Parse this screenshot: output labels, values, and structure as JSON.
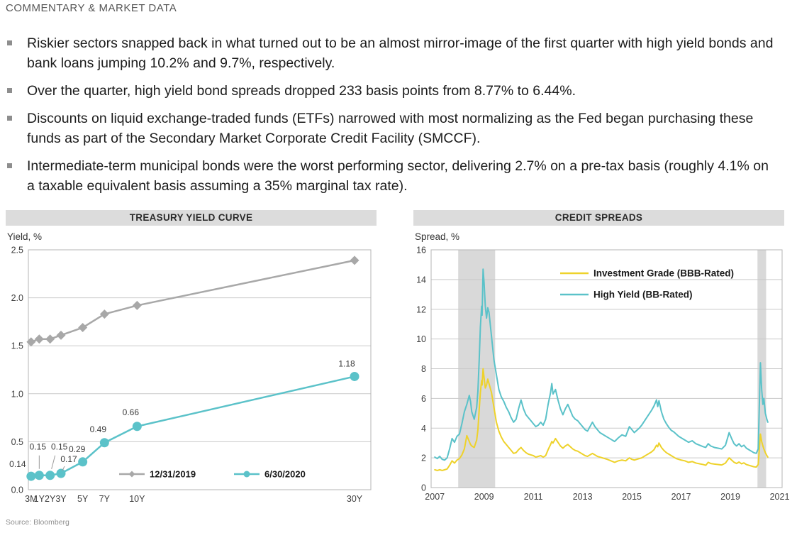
{
  "page": {
    "title": "COMMENTARY & MARKET DATA",
    "source": "Source: Bloomberg"
  },
  "bullets": [
    "Riskier sectors snapped back in what turned out to be an almost mirror-image of the first quarter with high yield bonds and bank loans jumping 10.2% and 9.7%, respectively.",
    "Over the quarter, high yield bond spreads dropped 233 basis points from 8.77% to 6.44%.",
    "Discounts on liquid exchange-traded funds (ETFs) narrowed with most normalizing as the Fed began purchasing these funds as part of the Secondary Market Corporate Credit Facility (SMCCF).",
    "Intermediate-term municipal bonds were the worst performing sector, delivering 2.7% on a pre-tax basis (roughly 4.1% on a taxable equivalent basis assuming a 35% marginal tax rate)."
  ],
  "colors": {
    "teal": "#5bc2c9",
    "yellow": "#eed22b",
    "series_gray": "#a8a8a8",
    "band_gray": "#d9d9d9",
    "banner_gray": "#dcdcdc",
    "grid": "#c9c9c9",
    "plot_border": "#b5b5b5"
  },
  "chart_data": [
    {
      "id": "treasury-yield-curve",
      "type": "line",
      "title": "TREASURY YIELD CURVE",
      "ylabel": "Yield, %",
      "xlim": [
        0,
        31.5
      ],
      "ylim": [
        0,
        2.5
      ],
      "yticks": [
        0,
        0.5,
        1.0,
        1.5,
        2.0,
        2.5
      ],
      "ytick_labels": [
        "0.0",
        "0.5",
        "1.0",
        "1.5",
        "2.0",
        "2.5"
      ],
      "xticks": [
        0.25,
        1,
        2,
        3,
        5,
        7,
        10,
        30
      ],
      "xtick_labels": [
        "3M",
        "1Y",
        "2Y",
        "3Y",
        "5Y",
        "7Y",
        "10Y",
        "30Y"
      ],
      "grid": "horizontal",
      "legend_position": "inside-bottom",
      "x": [
        0.25,
        1,
        2,
        3,
        5,
        7,
        10,
        30
      ],
      "series": [
        {
          "name": "12/31/2019",
          "color": "#a8a8a8",
          "marker": "diamond",
          "values": [
            1.54,
            1.57,
            1.57,
            1.61,
            1.69,
            1.83,
            1.92,
            2.39
          ]
        },
        {
          "name": "6/30/2020",
          "color": "#5bc2c9",
          "marker": "circle",
          "values": [
            0.14,
            0.15,
            0.15,
            0.17,
            0.29,
            0.49,
            0.66,
            1.18
          ],
          "point_labels": [
            "0.14",
            "0.15",
            "0.15",
            "0.17",
            "0.29",
            "0.49",
            "0.66",
            "1.18"
          ]
        }
      ]
    },
    {
      "id": "credit-spreads",
      "type": "line",
      "title": "CREDIT SPREADS",
      "ylabel": "Spread, %",
      "xlim": [
        2006.85,
        2021.1
      ],
      "ylim": [
        0,
        16
      ],
      "yticks": [
        0,
        2,
        4,
        6,
        8,
        10,
        12,
        14,
        16
      ],
      "ytick_labels": [
        "0",
        "2",
        "4",
        "6",
        "8",
        "10",
        "12",
        "14",
        "16"
      ],
      "xticks": [
        2007,
        2009,
        2011,
        2013,
        2015,
        2017,
        2019,
        2021
      ],
      "xtick_labels": [
        "2007",
        "2009",
        "2011",
        "2013",
        "2015",
        "2017",
        "2019",
        "2021"
      ],
      "grid": "horizontal",
      "legend_position": "inside-top-right",
      "bands": [
        {
          "from": 2007.95,
          "to": 2009.45
        },
        {
          "from": 2020.1,
          "to": 2020.45
        }
      ],
      "x": [
        2007.0,
        2007.1,
        2007.2,
        2007.3,
        2007.4,
        2007.5,
        2007.6,
        2007.7,
        2007.8,
        2007.9,
        2008.0,
        2008.1,
        2008.2,
        2008.3,
        2008.4,
        2008.45,
        2008.5,
        2008.6,
        2008.7,
        2008.75,
        2008.8,
        2008.85,
        2008.9,
        2008.92,
        2008.96,
        2009.0,
        2009.05,
        2009.1,
        2009.15,
        2009.2,
        2009.3,
        2009.4,
        2009.5,
        2009.6,
        2009.7,
        2009.8,
        2009.9,
        2010.0,
        2010.1,
        2010.2,
        2010.3,
        2010.4,
        2010.5,
        2010.6,
        2010.7,
        2010.8,
        2010.9,
        2011.0,
        2011.1,
        2011.2,
        2011.3,
        2011.4,
        2011.5,
        2011.6,
        2011.7,
        2011.75,
        2011.8,
        2011.9,
        2012.0,
        2012.1,
        2012.2,
        2012.3,
        2012.4,
        2012.5,
        2012.6,
        2012.7,
        2012.8,
        2012.9,
        2013.0,
        2013.1,
        2013.2,
        2013.3,
        2013.4,
        2013.5,
        2013.6,
        2013.7,
        2013.8,
        2013.9,
        2014.0,
        2014.15,
        2014.3,
        2014.45,
        2014.6,
        2014.75,
        2014.9,
        2015.0,
        2015.1,
        2015.2,
        2015.3,
        2015.4,
        2015.5,
        2015.6,
        2015.7,
        2015.8,
        2015.9,
        2016.0,
        2016.05,
        2016.1,
        2016.2,
        2016.3,
        2016.4,
        2016.5,
        2016.6,
        2016.7,
        2016.8,
        2016.9,
        2017.0,
        2017.15,
        2017.3,
        2017.45,
        2017.6,
        2017.75,
        2017.9,
        2018.0,
        2018.1,
        2018.2,
        2018.35,
        2018.5,
        2018.65,
        2018.8,
        2018.95,
        2019.05,
        2019.15,
        2019.25,
        2019.35,
        2019.45,
        2019.55,
        2019.65,
        2019.75,
        2019.85,
        2019.95,
        2020.05,
        2020.13,
        2020.22,
        2020.27,
        2020.32,
        2020.36,
        2020.42,
        2020.48,
        2020.52
      ],
      "series": [
        {
          "name": "Investment Grade (BBB-Rated)",
          "color": "#eed22b",
          "values": [
            1.2,
            1.15,
            1.2,
            1.15,
            1.2,
            1.25,
            1.5,
            1.8,
            1.65,
            1.85,
            1.95,
            2.2,
            2.6,
            3.5,
            3.1,
            2.9,
            2.8,
            2.7,
            3.2,
            3.9,
            5.2,
            6.4,
            7.2,
            6.9,
            8.0,
            7.4,
            6.7,
            6.9,
            7.3,
            7.0,
            6.4,
            5.4,
            4.4,
            3.8,
            3.4,
            3.1,
            2.9,
            2.7,
            2.5,
            2.3,
            2.35,
            2.55,
            2.7,
            2.5,
            2.35,
            2.25,
            2.2,
            2.15,
            2.05,
            2.1,
            2.15,
            2.05,
            2.15,
            2.55,
            2.9,
            3.1,
            3.0,
            3.3,
            3.05,
            2.8,
            2.65,
            2.8,
            2.9,
            2.75,
            2.6,
            2.5,
            2.45,
            2.35,
            2.25,
            2.15,
            2.1,
            2.2,
            2.3,
            2.2,
            2.1,
            2.05,
            2.0,
            1.95,
            1.9,
            1.8,
            1.7,
            1.8,
            1.85,
            1.8,
            2.0,
            1.9,
            1.85,
            1.9,
            1.95,
            2.0,
            2.1,
            2.2,
            2.3,
            2.4,
            2.55,
            2.85,
            2.75,
            3.0,
            2.7,
            2.5,
            2.35,
            2.25,
            2.15,
            2.05,
            1.95,
            1.9,
            1.85,
            1.8,
            1.7,
            1.75,
            1.65,
            1.6,
            1.55,
            1.5,
            1.7,
            1.62,
            1.58,
            1.55,
            1.52,
            1.65,
            2.0,
            1.85,
            1.7,
            1.62,
            1.72,
            1.6,
            1.66,
            1.55,
            1.5,
            1.45,
            1.4,
            1.38,
            1.55,
            3.6,
            3.1,
            2.8,
            2.6,
            2.35,
            2.15,
            2.05
          ]
        },
        {
          "name": "High Yield (BB-Rated)",
          "color": "#5bc2c9",
          "values": [
            2.05,
            1.95,
            2.1,
            1.9,
            1.85,
            2.0,
            2.6,
            3.3,
            3.05,
            3.45,
            3.6,
            4.3,
            5.1,
            5.6,
            6.2,
            5.8,
            5.1,
            4.6,
            5.4,
            6.5,
            8.5,
            10.8,
            12.2,
            11.6,
            14.7,
            13.8,
            12.2,
            11.4,
            12.1,
            11.8,
            10.2,
            8.6,
            7.6,
            6.6,
            6.1,
            5.8,
            5.4,
            5.1,
            4.7,
            4.4,
            4.6,
            5.3,
            5.9,
            5.3,
            4.9,
            4.7,
            4.5,
            4.3,
            4.1,
            4.2,
            4.4,
            4.2,
            4.6,
            5.6,
            6.4,
            7.0,
            6.3,
            6.6,
            5.9,
            5.3,
            4.9,
            5.3,
            5.6,
            5.2,
            4.8,
            4.6,
            4.5,
            4.3,
            4.1,
            3.9,
            3.8,
            4.1,
            4.4,
            4.1,
            3.9,
            3.7,
            3.6,
            3.5,
            3.4,
            3.25,
            3.1,
            3.35,
            3.55,
            3.45,
            4.1,
            3.9,
            3.7,
            3.85,
            4.0,
            4.2,
            4.45,
            4.7,
            4.95,
            5.2,
            5.5,
            5.9,
            5.45,
            5.85,
            5.1,
            4.6,
            4.3,
            4.05,
            3.85,
            3.75,
            3.6,
            3.45,
            3.35,
            3.2,
            3.05,
            3.15,
            2.95,
            2.85,
            2.75,
            2.7,
            2.95,
            2.8,
            2.7,
            2.65,
            2.6,
            2.85,
            3.7,
            3.3,
            2.95,
            2.8,
            2.95,
            2.75,
            2.85,
            2.65,
            2.55,
            2.45,
            2.35,
            2.3,
            2.6,
            8.4,
            6.6,
            5.6,
            6.0,
            5.0,
            4.6,
            4.4
          ]
        }
      ]
    }
  ]
}
